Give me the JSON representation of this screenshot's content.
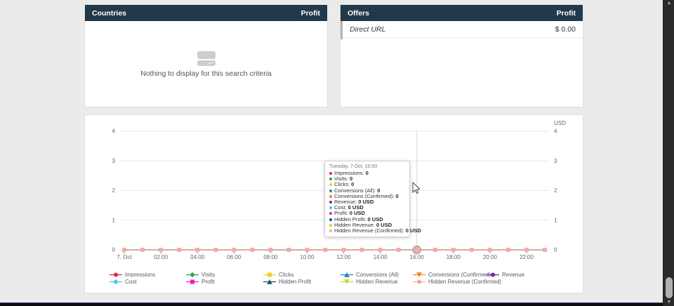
{
  "panels": {
    "countries": {
      "title": "Countries",
      "metric_label": "Profit",
      "empty_text": "Nothing to display for this search criteria"
    },
    "offers": {
      "title": "Offers",
      "metric_label": "Profit",
      "rows": [
        {
          "name": "Direct URL",
          "value": "$ 0.00"
        }
      ]
    }
  },
  "colors": {
    "header_bg": "#223949",
    "grid_line": "#e9e9e9",
    "axis_text": "#666666",
    "overlap_line": "#c0948a",
    "marker_fill": "#f4aea5",
    "marker_stroke": "#e89c93",
    "hover_ring": "#a3a3a3",
    "crosshair": "#d9d9d9"
  },
  "chart_data": {
    "type": "line",
    "title": "",
    "xlabel": "",
    "ylabel_right": "USD",
    "ylim": [
      0,
      4
    ],
    "y_ticks": [
      0,
      1,
      2,
      3,
      4
    ],
    "x_tick_labels": [
      "7. Oct",
      "02:00",
      "04:00",
      "06:00",
      "08:00",
      "10:00",
      "12:00",
      "14:00",
      "16:00",
      "18:00",
      "20:00",
      "22:00"
    ],
    "hover": {
      "index": 16,
      "label": "Tuesday, 7 Oct, 16:00"
    },
    "series": [
      {
        "name": "Impressions",
        "color": "#e02440",
        "shape": "circle",
        "values": [
          0,
          0,
          0,
          0,
          0,
          0,
          0,
          0,
          0,
          0,
          0,
          0,
          0,
          0,
          0,
          0,
          0,
          0,
          0,
          0,
          0,
          0,
          0,
          0
        ]
      },
      {
        "name": "Visits",
        "color": "#2aa451",
        "shape": "diamond",
        "values": [
          0,
          0,
          0,
          0,
          0,
          0,
          0,
          0,
          0,
          0,
          0,
          0,
          0,
          0,
          0,
          0,
          0,
          0,
          0,
          0,
          0,
          0,
          0,
          0
        ]
      },
      {
        "name": "Clicks",
        "color": "#f4cf1d",
        "shape": "square",
        "values": [
          0,
          0,
          0,
          0,
          0,
          0,
          0,
          0,
          0,
          0,
          0,
          0,
          0,
          0,
          0,
          0,
          0,
          0,
          0,
          0,
          0,
          0,
          0,
          0
        ]
      },
      {
        "name": "Conversions (All)",
        "color": "#1d83c4",
        "shape": "triangle-up",
        "values": [
          0,
          0,
          0,
          0,
          0,
          0,
          0,
          0,
          0,
          0,
          0,
          0,
          0,
          0,
          0,
          0,
          0,
          0,
          0,
          0,
          0,
          0,
          0,
          0
        ]
      },
      {
        "name": "Conversions (Confirmed)",
        "color": "#f58220",
        "shape": "triangle-down",
        "values": [
          0,
          0,
          0,
          0,
          0,
          0,
          0,
          0,
          0,
          0,
          0,
          0,
          0,
          0,
          0,
          0,
          0,
          0,
          0,
          0,
          0,
          0,
          0,
          0
        ]
      },
      {
        "name": "Revenue",
        "color": "#7a1fa2",
        "shape": "circle",
        "values": [
          0,
          0,
          0,
          0,
          0,
          0,
          0,
          0,
          0,
          0,
          0,
          0,
          0,
          0,
          0,
          0,
          0,
          0,
          0,
          0,
          0,
          0,
          0,
          0
        ]
      },
      {
        "name": "Cost",
        "color": "#41c7e8",
        "shape": "diamond",
        "values": [
          0,
          0,
          0,
          0,
          0,
          0,
          0,
          0,
          0,
          0,
          0,
          0,
          0,
          0,
          0,
          0,
          0,
          0,
          0,
          0,
          0,
          0,
          0,
          0
        ]
      },
      {
        "name": "Profit",
        "color": "#ed1ec6",
        "shape": "square",
        "values": [
          0,
          0,
          0,
          0,
          0,
          0,
          0,
          0,
          0,
          0,
          0,
          0,
          0,
          0,
          0,
          0,
          0,
          0,
          0,
          0,
          0,
          0,
          0,
          0
        ]
      },
      {
        "name": "Hidden Profit",
        "color": "#14586d",
        "shape": "triangle-up",
        "values": [
          0,
          0,
          0,
          0,
          0,
          0,
          0,
          0,
          0,
          0,
          0,
          0,
          0,
          0,
          0,
          0,
          0,
          0,
          0,
          0,
          0,
          0,
          0,
          0
        ]
      },
      {
        "name": "Hidden Revenue",
        "color": "#cadb2a",
        "shape": "triangle-down",
        "values": [
          0,
          0,
          0,
          0,
          0,
          0,
          0,
          0,
          0,
          0,
          0,
          0,
          0,
          0,
          0,
          0,
          0,
          0,
          0,
          0,
          0,
          0,
          0,
          0
        ]
      },
      {
        "name": "Hidden Revenue (Confirmed)",
        "color": "#f3a79e",
        "shape": "circle",
        "values": [
          0,
          0,
          0,
          0,
          0,
          0,
          0,
          0,
          0,
          0,
          0,
          0,
          0,
          0,
          0,
          0,
          0,
          0,
          0,
          0,
          0,
          0,
          0,
          0
        ]
      }
    ]
  },
  "tooltip": {
    "title": "Tuesday, 7 Oct, 16:00",
    "rows": [
      {
        "label": "Impressions",
        "value": "0",
        "color": "#e02440"
      },
      {
        "label": "Visits",
        "value": "0",
        "color": "#2aa451"
      },
      {
        "label": "Clicks",
        "value": "0",
        "color": "#f4cf1d"
      },
      {
        "label": "Conversions (All)",
        "value": "0",
        "color": "#1d83c4"
      },
      {
        "label": "Conversions (Confirmed)",
        "value": "0",
        "color": "#f58220"
      },
      {
        "label": "Revenue",
        "value": "0 USD",
        "color": "#7a1fa2"
      },
      {
        "label": "Cost",
        "value": "0 USD",
        "color": "#41c7e8"
      },
      {
        "label": "Profit",
        "value": "0 USD",
        "color": "#ed1ec6"
      },
      {
        "label": "Hidden Profit",
        "value": "0 USD",
        "color": "#14586d"
      },
      {
        "label": "Hidden Revenue",
        "value": "0 USD",
        "color": "#cadb2a"
      },
      {
        "label": "Hidden Revenue (Confirmed)",
        "value": "0 USD",
        "color": "#f3a79e"
      }
    ]
  },
  "scrollbar": {
    "up_glyph": "▲",
    "down_glyph": "▼"
  }
}
